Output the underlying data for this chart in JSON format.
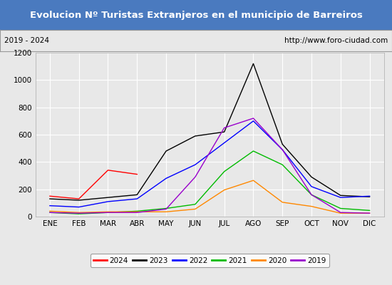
{
  "title": "Evolucion Nº Turistas Extranjeros en el municipio de Barreiros",
  "subtitle_left": "2019 - 2024",
  "subtitle_right": "http://www.foro-ciudad.com",
  "title_bg_color": "#4a7abf",
  "title_text_color": "#ffffff",
  "subtitle_bg_color": "#e8e8e8",
  "plot_bg_color": "#e8e8e8",
  "fig_bg_color": "#e8e8e8",
  "months": [
    "ENE",
    "FEB",
    "MAR",
    "ABR",
    "MAY",
    "JUN",
    "JUL",
    "AGO",
    "SEP",
    "OCT",
    "NOV",
    "DIC"
  ],
  "ylim": [
    0,
    1200
  ],
  "yticks": [
    0,
    200,
    400,
    600,
    800,
    1000,
    1200
  ],
  "series": {
    "2024": {
      "color": "#ff0000",
      "data": [
        150,
        130,
        340,
        310,
        null,
        null,
        null,
        null,
        null,
        null,
        null,
        null
      ]
    },
    "2023": {
      "color": "#000000",
      "data": [
        130,
        120,
        140,
        160,
        480,
        590,
        620,
        1120,
        530,
        290,
        155,
        145
      ]
    },
    "2022": {
      "color": "#0000ff",
      "data": [
        80,
        70,
        110,
        130,
        280,
        380,
        540,
        700,
        490,
        220,
        140,
        150
      ]
    },
    "2021": {
      "color": "#00bb00",
      "data": [
        30,
        20,
        30,
        40,
        60,
        90,
        330,
        480,
        380,
        160,
        60,
        45
      ]
    },
    "2020": {
      "color": "#ff8800",
      "data": [
        40,
        30,
        35,
        35,
        35,
        55,
        195,
        265,
        105,
        75,
        25,
        25
      ]
    },
    "2019": {
      "color": "#9900cc",
      "data": [
        30,
        25,
        30,
        30,
        55,
        290,
        650,
        720,
        490,
        160,
        30,
        25
      ]
    }
  },
  "legend_order": [
    "2024",
    "2023",
    "2022",
    "2021",
    "2020",
    "2019"
  ]
}
